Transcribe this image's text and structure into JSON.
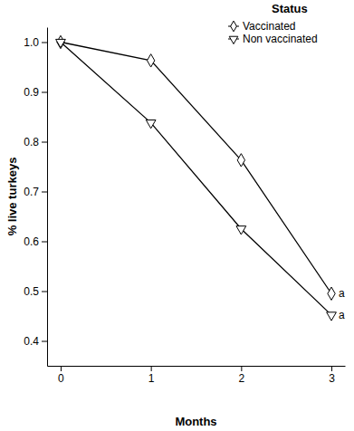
{
  "chart_data": {
    "type": "line",
    "x_label": "Months",
    "y_label": "% live turkeys",
    "x": [
      0,
      1,
      2,
      3
    ],
    "series": [
      {
        "name": "Vaccinated",
        "color": "#000000",
        "marker": "diamond",
        "values": [
          1.0,
          0.963,
          0.763,
          0.495
        ]
      },
      {
        "name": "Non vaccinated",
        "color": "#000000",
        "marker": "triangle-down",
        "values": [
          1.0,
          0.838,
          0.625,
          0.452
        ]
      }
    ],
    "xlim": [
      -0.15,
      3.15
    ],
    "xticks": [
      0,
      1,
      2,
      3
    ],
    "ylim": [
      0.35,
      1.03
    ],
    "yticks": [
      0.4,
      0.5,
      0.6,
      0.7,
      0.8,
      0.9,
      {
        "value": 1,
        "label": "1.0"
      }
    ],
    "legend": "top-right",
    "legend_title": "Status",
    "annotations": [
      {
        "text": "a",
        "x": 3,
        "y": 0.495
      },
      {
        "text": "a",
        "x": 3,
        "y": 0.452
      }
    ],
    "grid": false
  }
}
